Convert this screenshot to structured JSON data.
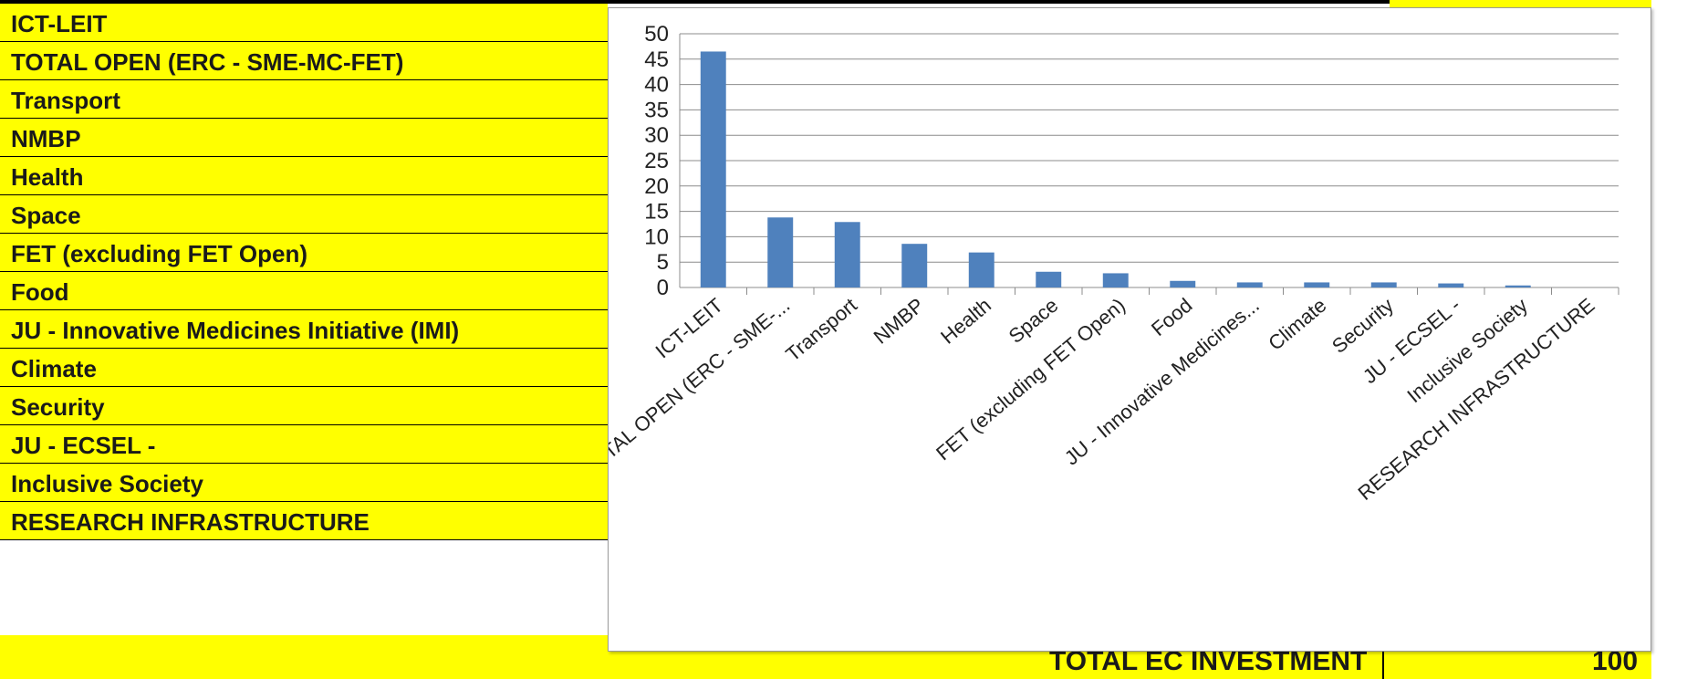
{
  "sheet": {
    "rows": [
      "ICT-LEIT",
      "TOTAL OPEN (ERC - SME-MC-FET)",
      "Transport",
      "NMBP",
      "Health",
      "Space",
      "FET (excluding FET Open)",
      "Food",
      "JU - Innovative Medicines Initiative (IMI)",
      "Climate",
      "Security",
      "JU - ECSEL -",
      "Inclusive Society",
      "RESEARCH INFRASTRUCTURE"
    ],
    "total_label": "TOTAL  EC INVESTMENT",
    "total_value": "100"
  },
  "chart_data": {
    "type": "bar",
    "categories": [
      "ICT-LEIT",
      "TOTAL OPEN (ERC - SME-...",
      "Transport",
      "NMBP",
      "Health",
      "Space",
      "FET (excluding FET Open)",
      "Food",
      "JU - Innovative Medicines...",
      "Climate",
      "Security",
      "JU - ECSEL -",
      "Inclusive Society",
      "RESEARCH INFRASTRUCTURE"
    ],
    "values": [
      46.5,
      13.8,
      12.9,
      8.6,
      6.9,
      3.1,
      2.8,
      1.3,
      1.0,
      1.0,
      1.0,
      0.8,
      0.4,
      0.0
    ],
    "ylim": [
      0,
      50
    ],
    "yticks": [
      0,
      5,
      10,
      15,
      20,
      25,
      30,
      35,
      40,
      45,
      50
    ],
    "grid": true,
    "bar_color": "#4f81bd",
    "legend": "none"
  }
}
